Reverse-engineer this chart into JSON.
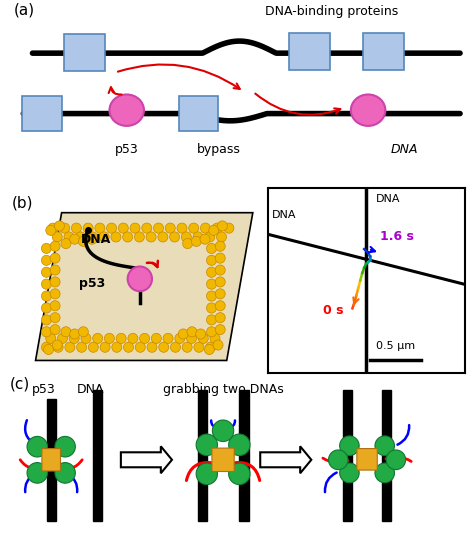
{
  "bg_color": "#ffffff",
  "label_a": "(a)",
  "label_b": "(b)",
  "label_c": "(c)",
  "dna_color": "#000000",
  "box_color": "#aec6e8",
  "box_edge": "#5588bb",
  "p53_color": "#ee66bb",
  "p53_edge": "#cc44aa",
  "arrow_color": "#dd0000",
  "yellow_bead": "#f0b800",
  "yellow_bead_edge": "#c88800",
  "beige_bg": "#e8ddb8",
  "green_color": "#22aa44",
  "green_edge": "#117733",
  "purple_color": "#aa00cc",
  "yellow_tet": "#e8a820",
  "yellow_tet_edge": "#b07010"
}
